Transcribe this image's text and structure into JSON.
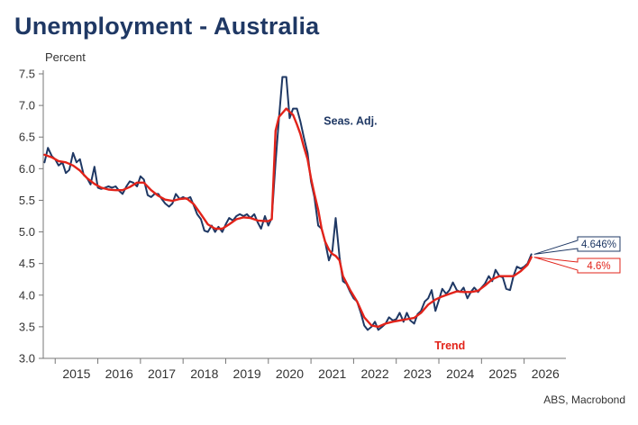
{
  "chart_data": {
    "type": "line",
    "title": "Unemployment - Australia",
    "ylabel": "Percent",
    "source": "ABS, Macrobond",
    "ylim": [
      3.0,
      7.5
    ],
    "xlim": [
      2014.72,
      2026.98
    ],
    "y_ticks": [
      "3.0",
      "3.5",
      "4.0",
      "4.5",
      "5.0",
      "5.5",
      "6.0",
      "6.5",
      "7.0",
      "7.5"
    ],
    "x_tick_labels": [
      "2015",
      "2016",
      "2017",
      "2018",
      "2019",
      "2020",
      "2021",
      "2022",
      "2023",
      "2024",
      "2025",
      "2026"
    ],
    "series": [
      {
        "name": "Seas. Adj.",
        "color": "#1f3864",
        "end_label": "4.646%",
        "points": [
          [
            2014.75,
            6.1
          ],
          [
            2014.83,
            6.33
          ],
          [
            2014.92,
            6.2
          ],
          [
            2015.0,
            6.15
          ],
          [
            2015.08,
            6.05
          ],
          [
            2015.17,
            6.1
          ],
          [
            2015.25,
            5.93
          ],
          [
            2015.33,
            5.98
          ],
          [
            2015.42,
            6.25
          ],
          [
            2015.5,
            6.1
          ],
          [
            2015.58,
            6.15
          ],
          [
            2015.67,
            5.9
          ],
          [
            2015.75,
            5.85
          ],
          [
            2015.83,
            5.75
          ],
          [
            2015.92,
            6.03
          ],
          [
            2016.0,
            5.7
          ],
          [
            2016.08,
            5.68
          ],
          [
            2016.17,
            5.7
          ],
          [
            2016.25,
            5.72
          ],
          [
            2016.33,
            5.7
          ],
          [
            2016.42,
            5.72
          ],
          [
            2016.5,
            5.65
          ],
          [
            2016.58,
            5.6
          ],
          [
            2016.67,
            5.72
          ],
          [
            2016.75,
            5.8
          ],
          [
            2016.83,
            5.78
          ],
          [
            2016.92,
            5.72
          ],
          [
            2017.0,
            5.88
          ],
          [
            2017.08,
            5.83
          ],
          [
            2017.17,
            5.58
          ],
          [
            2017.25,
            5.55
          ],
          [
            2017.33,
            5.6
          ],
          [
            2017.42,
            5.6
          ],
          [
            2017.5,
            5.52
          ],
          [
            2017.58,
            5.45
          ],
          [
            2017.67,
            5.4
          ],
          [
            2017.75,
            5.45
          ],
          [
            2017.83,
            5.6
          ],
          [
            2017.92,
            5.52
          ],
          [
            2018.0,
            5.55
          ],
          [
            2018.08,
            5.52
          ],
          [
            2018.17,
            5.55
          ],
          [
            2018.25,
            5.42
          ],
          [
            2018.33,
            5.28
          ],
          [
            2018.42,
            5.2
          ],
          [
            2018.5,
            5.02
          ],
          [
            2018.58,
            5.0
          ],
          [
            2018.67,
            5.1
          ],
          [
            2018.75,
            5.0
          ],
          [
            2018.83,
            5.08
          ],
          [
            2018.92,
            5.0
          ],
          [
            2019.0,
            5.12
          ],
          [
            2019.08,
            5.22
          ],
          [
            2019.17,
            5.18
          ],
          [
            2019.25,
            5.25
          ],
          [
            2019.33,
            5.28
          ],
          [
            2019.42,
            5.25
          ],
          [
            2019.5,
            5.28
          ],
          [
            2019.58,
            5.22
          ],
          [
            2019.67,
            5.28
          ],
          [
            2019.75,
            5.15
          ],
          [
            2019.83,
            5.05
          ],
          [
            2019.92,
            5.25
          ],
          [
            2020.0,
            5.1
          ],
          [
            2020.08,
            5.22
          ],
          [
            2020.17,
            6.1
          ],
          [
            2020.25,
            6.8
          ],
          [
            2020.33,
            7.45
          ],
          [
            2020.42,
            7.45
          ],
          [
            2020.5,
            6.8
          ],
          [
            2020.58,
            6.95
          ],
          [
            2020.67,
            6.95
          ],
          [
            2020.75,
            6.75
          ],
          [
            2020.83,
            6.5
          ],
          [
            2020.92,
            6.25
          ],
          [
            2021.0,
            5.8
          ],
          [
            2021.08,
            5.55
          ],
          [
            2021.17,
            5.1
          ],
          [
            2021.25,
            5.05
          ],
          [
            2021.33,
            4.85
          ],
          [
            2021.42,
            4.55
          ],
          [
            2021.5,
            4.7
          ],
          [
            2021.58,
            5.22
          ],
          [
            2021.67,
            4.6
          ],
          [
            2021.75,
            4.22
          ],
          [
            2021.83,
            4.18
          ],
          [
            2021.92,
            4.05
          ],
          [
            2022.0,
            3.95
          ],
          [
            2022.08,
            3.9
          ],
          [
            2022.17,
            3.72
          ],
          [
            2022.25,
            3.52
          ],
          [
            2022.33,
            3.45
          ],
          [
            2022.42,
            3.5
          ],
          [
            2022.5,
            3.58
          ],
          [
            2022.58,
            3.45
          ],
          [
            2022.67,
            3.5
          ],
          [
            2022.75,
            3.55
          ],
          [
            2022.83,
            3.65
          ],
          [
            2022.92,
            3.6
          ],
          [
            2023.0,
            3.62
          ],
          [
            2023.08,
            3.72
          ],
          [
            2023.17,
            3.58
          ],
          [
            2023.25,
            3.72
          ],
          [
            2023.33,
            3.6
          ],
          [
            2023.42,
            3.55
          ],
          [
            2023.5,
            3.7
          ],
          [
            2023.58,
            3.75
          ],
          [
            2023.67,
            3.9
          ],
          [
            2023.75,
            3.95
          ],
          [
            2023.83,
            4.08
          ],
          [
            2023.92,
            3.75
          ],
          [
            2024.0,
            3.92
          ],
          [
            2024.08,
            4.1
          ],
          [
            2024.17,
            4.02
          ],
          [
            2024.25,
            4.08
          ],
          [
            2024.33,
            4.2
          ],
          [
            2024.42,
            4.08
          ],
          [
            2024.5,
            4.05
          ],
          [
            2024.58,
            4.12
          ],
          [
            2024.67,
            3.95
          ],
          [
            2024.75,
            4.05
          ],
          [
            2024.83,
            4.12
          ],
          [
            2024.92,
            4.05
          ],
          [
            2025.0,
            4.12
          ],
          [
            2025.08,
            4.18
          ],
          [
            2025.17,
            4.3
          ],
          [
            2025.25,
            4.22
          ],
          [
            2025.33,
            4.4
          ],
          [
            2025.42,
            4.3
          ],
          [
            2025.5,
            4.28
          ],
          [
            2025.58,
            4.1
          ],
          [
            2025.67,
            4.08
          ],
          [
            2025.75,
            4.3
          ],
          [
            2025.83,
            4.45
          ],
          [
            2025.92,
            4.42
          ],
          [
            2026.0,
            4.45
          ],
          [
            2026.08,
            4.5
          ],
          [
            2026.17,
            4.646
          ]
        ]
      },
      {
        "name": "Trend",
        "color": "#e2231a",
        "end_label": "4.6%",
        "points": [
          [
            2014.75,
            6.22
          ],
          [
            2014.92,
            6.18
          ],
          [
            2015.08,
            6.12
          ],
          [
            2015.25,
            6.1
          ],
          [
            2015.42,
            6.05
          ],
          [
            2015.58,
            5.97
          ],
          [
            2015.75,
            5.85
          ],
          [
            2015.92,
            5.76
          ],
          [
            2016.08,
            5.7
          ],
          [
            2016.25,
            5.67
          ],
          [
            2016.42,
            5.66
          ],
          [
            2016.58,
            5.66
          ],
          [
            2016.75,
            5.71
          ],
          [
            2016.92,
            5.78
          ],
          [
            2017.08,
            5.78
          ],
          [
            2017.25,
            5.66
          ],
          [
            2017.42,
            5.57
          ],
          [
            2017.58,
            5.51
          ],
          [
            2017.75,
            5.49
          ],
          [
            2017.92,
            5.52
          ],
          [
            2018.08,
            5.53
          ],
          [
            2018.25,
            5.44
          ],
          [
            2018.42,
            5.28
          ],
          [
            2018.58,
            5.12
          ],
          [
            2018.75,
            5.05
          ],
          [
            2018.92,
            5.05
          ],
          [
            2019.08,
            5.12
          ],
          [
            2019.25,
            5.2
          ],
          [
            2019.42,
            5.23
          ],
          [
            2019.58,
            5.22
          ],
          [
            2019.75,
            5.18
          ],
          [
            2019.92,
            5.17
          ],
          [
            2020.0,
            5.17
          ],
          [
            2020.08,
            5.2
          ],
          [
            2020.17,
            6.6
          ],
          [
            2020.25,
            6.82
          ],
          [
            2020.33,
            6.88
          ],
          [
            2020.42,
            6.95
          ],
          [
            2020.5,
            6.9
          ],
          [
            2020.58,
            6.85
          ],
          [
            2020.67,
            6.7
          ],
          [
            2020.75,
            6.55
          ],
          [
            2020.83,
            6.35
          ],
          [
            2020.92,
            6.15
          ],
          [
            2021.0,
            5.85
          ],
          [
            2021.08,
            5.6
          ],
          [
            2021.17,
            5.35
          ],
          [
            2021.25,
            5.05
          ],
          [
            2021.33,
            4.85
          ],
          [
            2021.42,
            4.72
          ],
          [
            2021.5,
            4.65
          ],
          [
            2021.58,
            4.62
          ],
          [
            2021.67,
            4.55
          ],
          [
            2021.75,
            4.3
          ],
          [
            2021.92,
            4.08
          ],
          [
            2022.08,
            3.9
          ],
          [
            2022.25,
            3.65
          ],
          [
            2022.42,
            3.52
          ],
          [
            2022.58,
            3.5
          ],
          [
            2022.75,
            3.55
          ],
          [
            2022.92,
            3.58
          ],
          [
            2023.08,
            3.6
          ],
          [
            2023.25,
            3.62
          ],
          [
            2023.42,
            3.64
          ],
          [
            2023.58,
            3.72
          ],
          [
            2023.75,
            3.85
          ],
          [
            2023.92,
            3.93
          ],
          [
            2024.08,
            3.98
          ],
          [
            2024.25,
            4.02
          ],
          [
            2024.42,
            4.06
          ],
          [
            2024.58,
            4.05
          ],
          [
            2024.75,
            4.05
          ],
          [
            2024.92,
            4.07
          ],
          [
            2025.08,
            4.15
          ],
          [
            2025.25,
            4.25
          ],
          [
            2025.42,
            4.3
          ],
          [
            2025.58,
            4.3
          ],
          [
            2025.75,
            4.3
          ],
          [
            2025.92,
            4.38
          ],
          [
            2026.08,
            4.48
          ],
          [
            2026.17,
            4.6
          ]
        ]
      }
    ],
    "annotations": [
      {
        "text": "Seas. Adj.",
        "color": "#1f3864",
        "x": 2021.3,
        "y": 6.75
      },
      {
        "text": "Trend",
        "color": "#e2231a",
        "x": 2023.9,
        "y": 3.2
      }
    ]
  }
}
